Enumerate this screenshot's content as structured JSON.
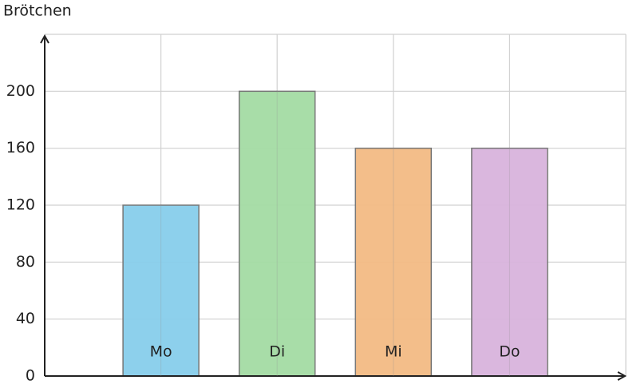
{
  "chart_data": {
    "type": "bar",
    "y_label": "Brötchen",
    "categories": [
      "Mo",
      "Di",
      "Mi",
      "Do"
    ],
    "values": [
      120,
      200,
      160,
      160
    ],
    "colors": [
      "#87ceeb",
      "#a3dba3",
      "#f2bb84",
      "#d8b3dc"
    ],
    "ylim": [
      0,
      240
    ],
    "yticks": [
      0,
      40,
      80,
      120,
      160,
      200
    ],
    "grid": true
  }
}
